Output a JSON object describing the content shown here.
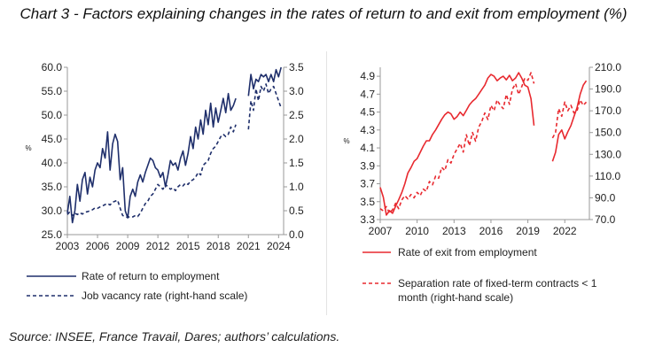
{
  "title": "Chart 3 -  Factors explaining changes in the rates of return to and exit from employment (%)",
  "source": "Source: INSEE, France Travail, Dares; authors’ calculations.",
  "chart_data": [
    {
      "type": "line",
      "xlabel": "",
      "ylabel": "%",
      "x_ticks": [
        "2003",
        "2006",
        "2009",
        "2012",
        "2015",
        "2018",
        "2021",
        "2024"
      ],
      "xlim": [
        2003,
        2024.5
      ],
      "ylim": [
        25,
        60
      ],
      "y_ticks": [
        "25.0",
        "30.0",
        "35.0",
        "40.0",
        "45.0",
        "50.0",
        "55.0",
        "60.0"
      ],
      "y2lim": [
        0,
        3.5
      ],
      "y2_ticks": [
        "0.0",
        "0.5",
        "1.0",
        "1.5",
        "2.0",
        "2.5",
        "3.0",
        "3.5"
      ],
      "grid": false,
      "legend": "bottom",
      "series": [
        {
          "name": "Rate of return to employment",
          "axis": "left",
          "style": "solid",
          "color": "#1f2f6b",
          "x": [
            2003.0,
            2003.25,
            2003.5,
            2003.75,
            2004.0,
            2004.25,
            2004.5,
            2004.75,
            2005.0,
            2005.25,
            2005.5,
            2005.75,
            2006.0,
            2006.25,
            2006.5,
            2006.75,
            2007.0,
            2007.25,
            2007.5,
            2007.75,
            2008.0,
            2008.25,
            2008.5,
            2008.75,
            2009.0,
            2009.25,
            2009.5,
            2009.75,
            2010.0,
            2010.25,
            2010.5,
            2010.75,
            2011.0,
            2011.25,
            2011.5,
            2011.75,
            2012.0,
            2012.25,
            2012.5,
            2012.75,
            2013.0,
            2013.25,
            2013.5,
            2013.75,
            2014.0,
            2014.25,
            2014.5,
            2014.75,
            2015.0,
            2015.25,
            2015.5,
            2015.75,
            2016.0,
            2016.25,
            2016.5,
            2016.75,
            2017.0,
            2017.25,
            2017.5,
            2017.75,
            2018.0,
            2018.25,
            2018.5,
            2018.75,
            2019.0,
            2019.25,
            2019.5,
            2019.75,
            null,
            2021.0,
            2021.25,
            2021.5,
            2021.75,
            2022.0,
            2022.25,
            2022.5,
            2022.75,
            2023.0,
            2023.25,
            2023.5,
            2023.75,
            2024.0,
            2024.25
          ],
          "values": [
            29.5,
            33.0,
            27.5,
            30.0,
            35.5,
            32.0,
            36.5,
            38.0,
            33.5,
            37.0,
            35.0,
            38.5,
            40.0,
            39.0,
            43.0,
            41.0,
            46.5,
            38.5,
            44.0,
            46.0,
            44.5,
            36.5,
            39.0,
            30.0,
            28.5,
            33.0,
            34.5,
            33.0,
            36.0,
            37.5,
            36.0,
            38.0,
            39.5,
            41.0,
            40.5,
            39.0,
            38.5,
            37.0,
            38.0,
            35.0,
            37.5,
            40.5,
            39.5,
            40.0,
            38.5,
            41.0,
            42.5,
            39.5,
            42.0,
            45.5,
            43.0,
            47.5,
            45.0,
            49.0,
            46.0,
            51.0,
            48.0,
            52.5,
            47.5,
            51.5,
            48.5,
            51.0,
            53.5,
            50.5,
            54.5,
            51.0,
            52.0,
            53.5,
            null,
            54.0,
            58.5,
            55.5,
            57.5,
            57.0,
            58.5,
            58.0,
            58.5,
            57.0,
            58.5,
            57.0,
            59.5,
            58.0,
            60.0
          ]
        },
        {
          "name": "Job vacancy rate (right-hand scale)",
          "axis": "right",
          "style": "dashed",
          "color": "#1f2f6b",
          "x": [
            2003.0,
            2003.25,
            2003.5,
            2003.75,
            2004.0,
            2004.25,
            2004.5,
            2004.75,
            2005.0,
            2005.25,
            2005.5,
            2005.75,
            2006.0,
            2006.25,
            2006.5,
            2006.75,
            2007.0,
            2007.25,
            2007.5,
            2007.75,
            2008.0,
            2008.25,
            2008.5,
            2008.75,
            2009.0,
            2009.25,
            2009.5,
            2009.75,
            2010.0,
            2010.25,
            2010.5,
            2010.75,
            2011.0,
            2011.25,
            2011.5,
            2011.75,
            2012.0,
            2012.25,
            2012.5,
            2012.75,
            2013.0,
            2013.25,
            2013.5,
            2013.75,
            2014.0,
            2014.25,
            2014.5,
            2014.75,
            2015.0,
            2015.25,
            2015.5,
            2015.75,
            2016.0,
            2016.25,
            2016.5,
            2016.75,
            2017.0,
            2017.25,
            2017.5,
            2017.75,
            2018.0,
            2018.25,
            2018.5,
            2018.75,
            2019.0,
            2019.25,
            2019.5,
            2019.75,
            null,
            2021.0,
            2021.25,
            2021.5,
            2021.75,
            2022.0,
            2022.25,
            2022.5,
            2022.75,
            2023.0,
            2023.25,
            2023.5,
            2023.75,
            2024.0,
            2024.25
          ],
          "values": [
            0.42,
            0.48,
            0.4,
            0.45,
            0.42,
            0.46,
            0.43,
            0.47,
            0.48,
            0.5,
            0.52,
            0.56,
            0.55,
            0.58,
            0.6,
            0.63,
            0.65,
            0.62,
            0.68,
            0.7,
            0.72,
            0.55,
            0.4,
            0.38,
            0.36,
            0.38,
            0.37,
            0.4,
            0.38,
            0.45,
            0.55,
            0.65,
            0.7,
            0.8,
            0.85,
            0.95,
            1.05,
            1.0,
            0.95,
            1.05,
            1.0,
            0.95,
            0.98,
            0.92,
            1.0,
            1.05,
            1.02,
            1.08,
            1.05,
            1.12,
            1.15,
            1.2,
            1.3,
            1.25,
            1.45,
            1.5,
            1.55,
            1.7,
            1.8,
            1.85,
            1.95,
            2.05,
            2.1,
            2.05,
            2.1,
            2.25,
            2.15,
            2.3,
            null,
            2.2,
            2.8,
            2.6,
            3.05,
            2.8,
            3.1,
            3.0,
            3.15,
            2.95,
            3.05,
            3.1,
            2.95,
            2.8,
            2.65
          ]
        }
      ]
    },
    {
      "type": "line",
      "xlabel": "",
      "ylabel": "%",
      "x_ticks": [
        "2007",
        "2010",
        "2013",
        "2016",
        "2019",
        "2022"
      ],
      "xlim": [
        2007,
        2024
      ],
      "ylim": [
        3.3,
        5.0
      ],
      "y_ticks": [
        "3.3",
        "3.5",
        "3.7",
        "3.9",
        "4.1",
        "4.3",
        "4.5",
        "4.7",
        "4.9"
      ],
      "y2lim": [
        70,
        210
      ],
      "y2_ticks": [
        "70.0",
        "90.0",
        "110.0",
        "130.0",
        "150.0",
        "170.0",
        "190.0",
        "210.0"
      ],
      "grid": false,
      "legend": "bottom",
      "series": [
        {
          "name": "Rate of exit from employment",
          "axis": "left",
          "style": "solid",
          "color": "#e8292f",
          "x": [
            2007.0,
            2007.25,
            2007.5,
            2007.75,
            2008.0,
            2008.25,
            2008.5,
            2008.75,
            2009.0,
            2009.25,
            2009.5,
            2009.75,
            2010.0,
            2010.25,
            2010.5,
            2010.75,
            2011.0,
            2011.25,
            2011.5,
            2011.75,
            2012.0,
            2012.25,
            2012.5,
            2012.75,
            2013.0,
            2013.25,
            2013.5,
            2013.75,
            2014.0,
            2014.25,
            2014.5,
            2014.75,
            2015.0,
            2015.25,
            2015.5,
            2015.75,
            2016.0,
            2016.25,
            2016.5,
            2016.75,
            2017.0,
            2017.25,
            2017.5,
            2017.75,
            2018.0,
            2018.25,
            2018.5,
            2018.75,
            2019.0,
            2019.25,
            2019.5,
            null,
            2021.0,
            2021.25,
            2021.5,
            2021.75,
            2022.0,
            2022.25,
            2022.5,
            2022.75,
            2023.0,
            2023.25,
            2023.5,
            2023.75
          ],
          "values": [
            3.66,
            3.55,
            3.35,
            3.4,
            3.37,
            3.45,
            3.52,
            3.6,
            3.7,
            3.82,
            3.88,
            3.95,
            3.98,
            4.05,
            4.12,
            4.18,
            4.18,
            4.25,
            4.3,
            4.36,
            4.42,
            4.47,
            4.5,
            4.48,
            4.42,
            4.45,
            4.5,
            4.46,
            4.52,
            4.58,
            4.62,
            4.65,
            4.7,
            4.75,
            4.8,
            4.88,
            4.92,
            4.9,
            4.85,
            4.88,
            4.9,
            4.86,
            4.91,
            4.85,
            4.88,
            4.94,
            4.88,
            4.8,
            4.78,
            4.65,
            4.35,
            null,
            3.95,
            4.05,
            4.25,
            4.3,
            4.2,
            4.28,
            4.35,
            4.45,
            4.55,
            4.7,
            4.8,
            4.85
          ]
        },
        {
          "name": "Separation rate of fixed-term contracts < 1 month (right-hand scale)",
          "axis": "right",
          "style": "dashed",
          "color": "#e8292f",
          "x": [
            2007.0,
            2007.25,
            2007.5,
            2007.75,
            2008.0,
            2008.25,
            2008.5,
            2008.75,
            2009.0,
            2009.25,
            2009.5,
            2009.75,
            2010.0,
            2010.25,
            2010.5,
            2010.75,
            2011.0,
            2011.25,
            2011.5,
            2011.75,
            2012.0,
            2012.25,
            2012.5,
            2012.75,
            2013.0,
            2013.25,
            2013.5,
            2013.75,
            2014.0,
            2014.25,
            2014.5,
            2014.75,
            2015.0,
            2015.25,
            2015.5,
            2015.75,
            2016.0,
            2016.25,
            2016.5,
            2016.75,
            2017.0,
            2017.25,
            2017.5,
            2017.75,
            2018.0,
            2018.25,
            2018.5,
            2018.75,
            2019.0,
            2019.25,
            2019.5,
            null,
            2021.0,
            2021.25,
            2021.5,
            2021.75,
            2022.0,
            2022.25,
            2022.5,
            2022.75,
            2023.0,
            2023.25,
            2023.5,
            2023.75
          ],
          "values": [
            80,
            78,
            82,
            76,
            79,
            85,
            80,
            88,
            92,
            89,
            93,
            90,
            95,
            92,
            98,
            96,
            105,
            102,
            110,
            108,
            118,
            115,
            125,
            122,
            130,
            135,
            140,
            132,
            148,
            138,
            150,
            142,
            155,
            160,
            168,
            162,
            175,
            170,
            180,
            175,
            172,
            185,
            176,
            190,
            195,
            185,
            192,
            200,
            198,
            205,
            195,
            null,
            145,
            150,
            172,
            165,
            178,
            170,
            175,
            168,
            170,
            180,
            175,
            178
          ]
        }
      ]
    }
  ]
}
